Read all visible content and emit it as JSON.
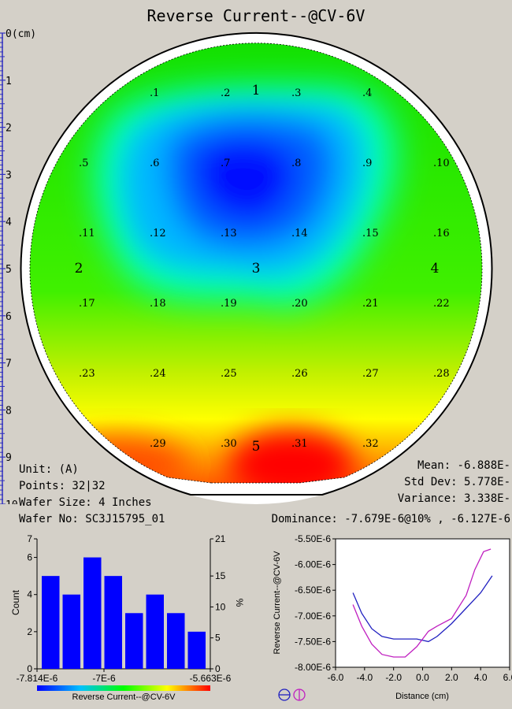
{
  "title": "Reverse Current--@CV-6V",
  "ruler": {
    "unit_label": "(cm)",
    "ticks": [
      0,
      1,
      2,
      3,
      4,
      5,
      6,
      7,
      8,
      9,
      10
    ]
  },
  "sites": [
    ".1",
    ".2",
    ".3",
    ".4",
    ".5",
    ".6",
    ".7",
    ".8",
    ".9",
    ".10",
    ".11",
    ".12",
    ".13",
    ".14",
    ".15",
    ".16",
    ".17",
    ".18",
    ".19",
    ".20",
    ".21",
    ".22",
    ".23",
    ".24",
    ".25",
    ".26",
    ".27",
    ".28",
    ".29",
    ".30",
    ".31",
    ".32"
  ],
  "zones": [
    "1",
    "2",
    "3",
    "4",
    "5"
  ],
  "info": {
    "unit": "Unit: (A)",
    "points": "Points: 32|32",
    "wafer_size": "Wafer Size: 4 Inches",
    "wafer_no": "Wafer No: SC3J15795_01",
    "mean": "Mean: -6.888E-",
    "std_dev": "Std Dev: 5.778E-",
    "variance": "Variance: 3.338E-",
    "dominance": "Dominance: -7.679E-6@10% , -6.127E-6"
  },
  "chart_data": [
    {
      "type": "bar",
      "title": "",
      "ylabel": "Count",
      "y2label": "%",
      "values": [
        5,
        4,
        6,
        5,
        3,
        4,
        3,
        2
      ],
      "ylim": [
        0,
        7
      ],
      "yticks": [
        "0",
        "2",
        "4",
        "6",
        "7"
      ],
      "y2lim": [
        0,
        21
      ],
      "y2ticks": [
        "0",
        "5",
        "10",
        "15",
        "21"
      ],
      "xticks": [
        "-7.814E-6",
        "-7E-6",
        "-5.663E-6"
      ],
      "colorbar_label": "Reverse Current--@CV-6V",
      "color": "#0000ff"
    },
    {
      "type": "line",
      "xlabel": "Distance (cm)",
      "ylabel": "Reverse Current--@CV-6V",
      "xlim": [
        -6.0,
        6.0
      ],
      "xticks": [
        "-6.0",
        "-4.0",
        "-2.0",
        "0.0",
        "2.0",
        "4.0",
        "6.0"
      ],
      "ylim": [
        -8e-06,
        -5.5e-06
      ],
      "yticks": [
        "-8.00E-6",
        "-7.50E-6",
        "-7.00E-6",
        "-6.50E-6",
        "-6.00E-6",
        "-5.50E-6"
      ],
      "series": [
        {
          "color": "#2020c0",
          "x": [
            -4.8,
            -4.2,
            -3.5,
            -2.8,
            -2,
            -1.2,
            -0.4,
            0.4,
            1,
            2,
            3,
            4,
            4.8
          ],
          "y": [
            -6.55e-06,
            -6.95e-06,
            -7.25e-06,
            -7.4e-06,
            -7.45e-06,
            -7.45e-06,
            -7.45e-06,
            -7.5e-06,
            -7.4e-06,
            -7.15e-06,
            -6.85e-06,
            -6.55e-06,
            -6.22e-06
          ]
        },
        {
          "color": "#c020c0",
          "x": [
            -4.8,
            -4.2,
            -3.5,
            -2.8,
            -2,
            -1.2,
            -0.4,
            0.4,
            1,
            2,
            3,
            3.6,
            4.2,
            4.7
          ],
          "y": [
            -6.78e-06,
            -7.2e-06,
            -7.55e-06,
            -7.75e-06,
            -7.8e-06,
            -7.8e-06,
            -7.6e-06,
            -7.3e-06,
            -7.2e-06,
            -7.05e-06,
            -6.6e-06,
            -6.1e-06,
            -5.75e-06,
            -5.7e-06
          ]
        }
      ]
    }
  ]
}
